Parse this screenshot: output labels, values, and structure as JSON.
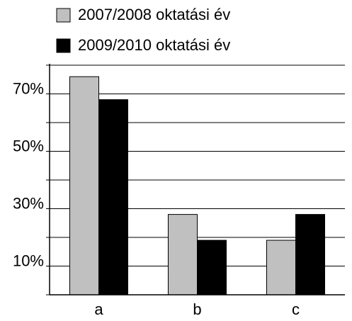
{
  "chart_data": {
    "type": "bar",
    "categories": [
      "a",
      "b",
      "c"
    ],
    "series": [
      {
        "name": "2007/2008 oktatási év",
        "color": "#c0c0c0",
        "values": [
          76,
          28,
          19
        ]
      },
      {
        "name": "2009/2010 oktatási év",
        "color": "#000000",
        "values": [
          68,
          19,
          28
        ]
      }
    ],
    "ylim": [
      0,
      80
    ],
    "yticks": [
      {
        "value": 10,
        "label": "10%"
      },
      {
        "value": 30,
        "label": "30%"
      },
      {
        "value": 50,
        "label": "50%"
      },
      {
        "value": 70,
        "label": "70%"
      }
    ],
    "minor_yticks": [
      0,
      20,
      40,
      60,
      80
    ],
    "grid": true
  }
}
